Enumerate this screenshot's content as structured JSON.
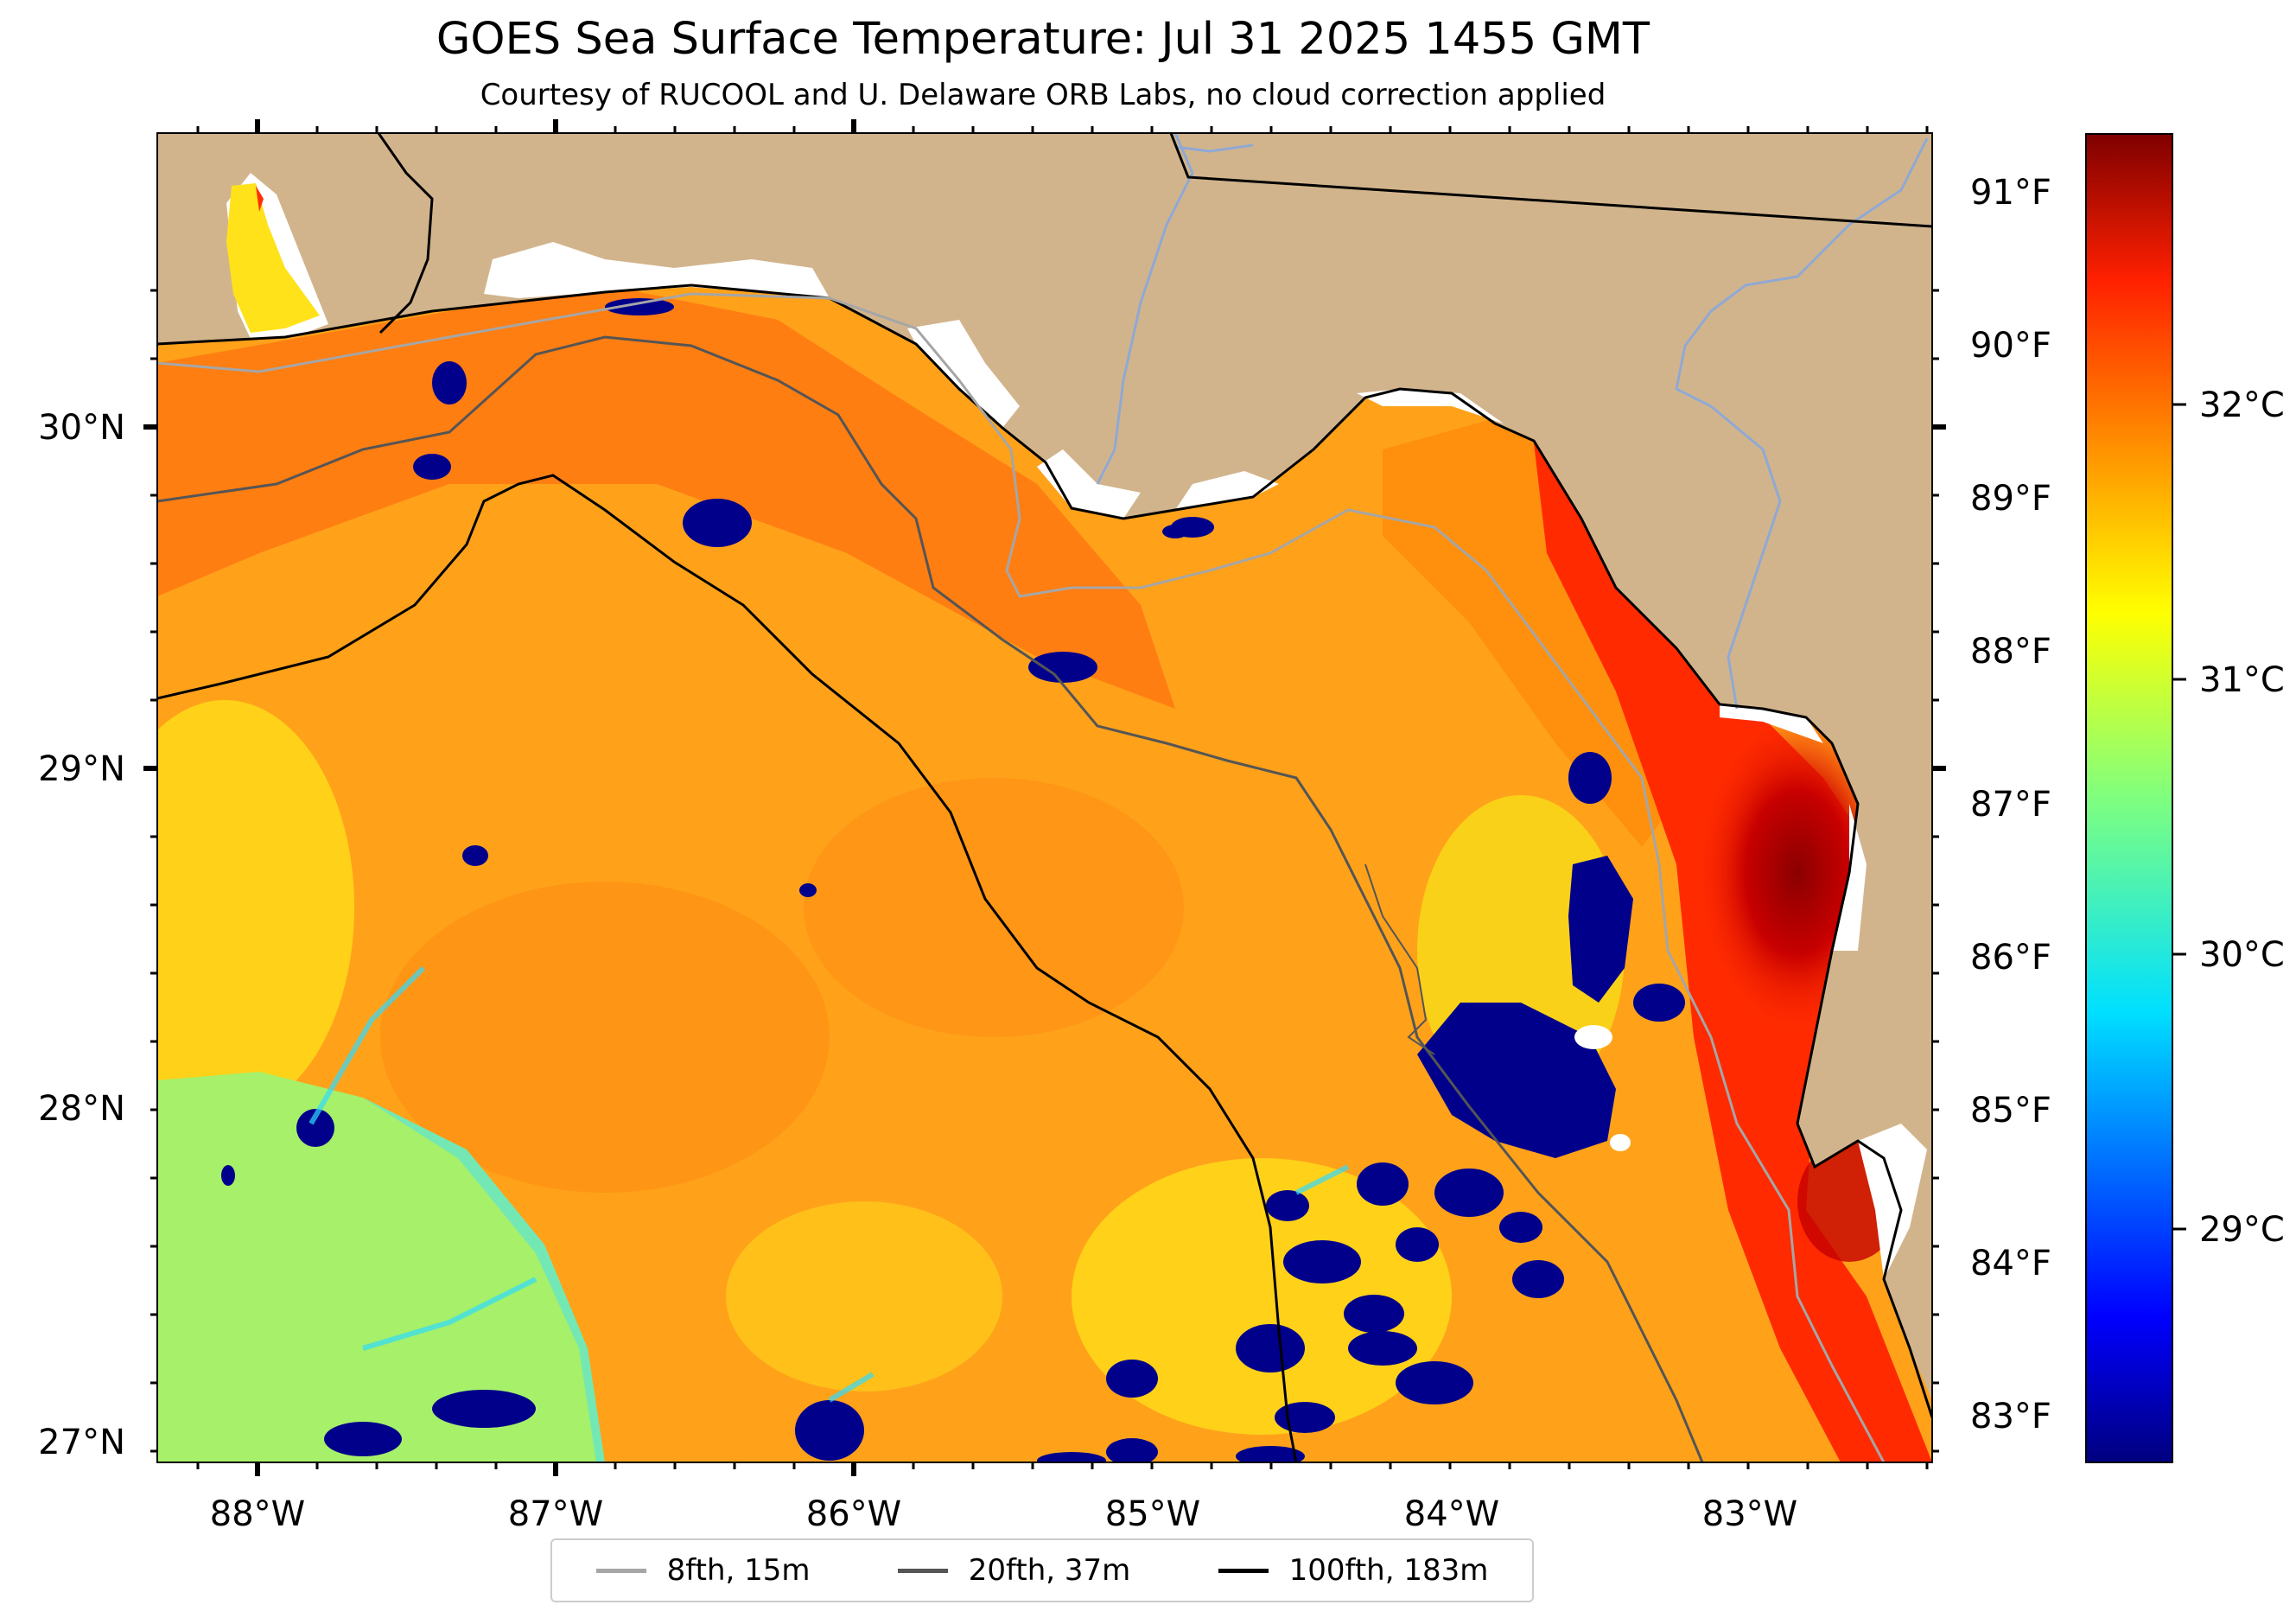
{
  "title": "GOES Sea Surface Temperature: Jul 31 2025 1455 GMT",
  "subtitle": "Courtesy of RUCOOL and U. Delaware ORB Labs, no cloud correction applied",
  "map": {
    "longitude_labels": [
      "88°W",
      "87°W",
      "86°W",
      "85°W",
      "84°W",
      "83°W"
    ],
    "latitude_labels": [
      "30°N",
      "29°N",
      "28°N",
      "27°N"
    ],
    "fahrenheit_labels": [
      "91°F",
      "90°F",
      "89°F",
      "88°F",
      "87°F",
      "86°F",
      "85°F",
      "84°F",
      "83°F"
    ],
    "colors": {
      "land": "#d2b48c",
      "no_data": "#ffffff",
      "rivers": "#8fa9d4",
      "coastline": "#000000"
    }
  },
  "colorbar": {
    "colormap": "jet",
    "labels": [
      "32°C",
      "31°C",
      "30°C",
      "29°C"
    ],
    "celsius_ticks": [
      32,
      31,
      30,
      29
    ]
  },
  "legend": {
    "items": [
      {
        "label": "8fth, 15m",
        "color": "#a6a6a6"
      },
      {
        "label": "20fth, 37m",
        "color": "#555555"
      },
      {
        "label": "100fth, 183m",
        "color": "#000000"
      }
    ]
  }
}
